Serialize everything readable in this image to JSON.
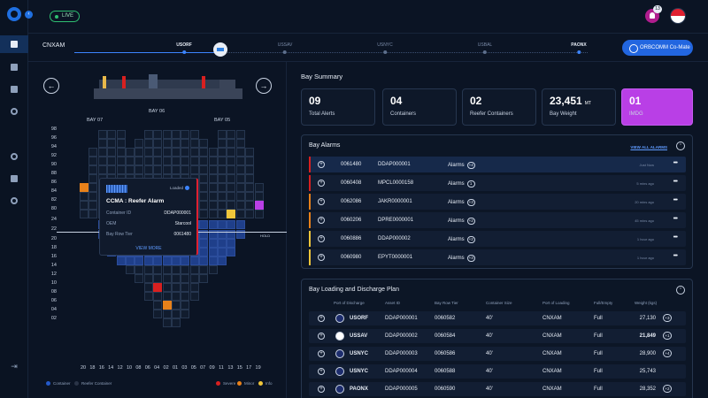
{
  "topbar": {
    "live_label": "LIVE",
    "notification_count": "13"
  },
  "route": {
    "origin": "CNXAM",
    "stops": [
      {
        "code": "USORF",
        "active": true
      },
      {
        "code": "USSAV",
        "active": false
      },
      {
        "code": "USNYC",
        "active": false
      },
      {
        "code": "USBAL",
        "active": false
      },
      {
        "code": "PAONX",
        "active": true
      }
    ],
    "comate_label": "ORBCOMM Co-Mate"
  },
  "bay_view": {
    "bay_labels": {
      "center": "BAY 06",
      "left": "BAY 07",
      "right": "BAY 05"
    },
    "row_labels": [
      "98",
      "96",
      "94",
      "92",
      "90",
      "88",
      "86",
      "84",
      "82",
      "80",
      "24",
      "22",
      "20",
      "18",
      "16",
      "14",
      "12",
      "10",
      "08",
      "06",
      "04",
      "02"
    ],
    "column_labels": [
      "20",
      "18",
      "16",
      "14",
      "12",
      "10",
      "08",
      "06",
      "04",
      "02",
      "01",
      "03",
      "05",
      "07",
      "09",
      "11",
      "13",
      "15",
      "17",
      "19"
    ],
    "hold_label": "HOLD",
    "legend": [
      {
        "label": "Container",
        "color": "#2459c9"
      },
      {
        "label": "Reefer Container",
        "color": "#2a3447"
      },
      {
        "label": "Severe",
        "color": "#d82020"
      },
      {
        "label": "Minor",
        "color": "#e8811a"
      },
      {
        "label": "Info",
        "color": "#f0c63a"
      }
    ],
    "popup": {
      "status": "Loaded",
      "title": "CCMA : Reefer Alarm",
      "fields": [
        {
          "key": "Container ID",
          "value": "DDAP000001"
        },
        {
          "key": "OEM",
          "value": "Starcool"
        },
        {
          "key": "Bay Row Tier",
          "value": "0061480"
        }
      ],
      "view_more": "VIEW MORE"
    }
  },
  "bay_summary": {
    "title": "Bay Summary",
    "stats": [
      {
        "value": "09",
        "unit": "",
        "label": "Total Alerts"
      },
      {
        "value": "04",
        "unit": "",
        "label": "Containers"
      },
      {
        "value": "02",
        "unit": "",
        "label": "Reefer Containers"
      },
      {
        "value": "23,451",
        "unit": "MT",
        "label": "Bay Weight"
      },
      {
        "value": "01",
        "unit": "",
        "label": "IMDG"
      }
    ]
  },
  "bay_alarms": {
    "title": "Bay Alarms",
    "view_all": "VIEW ALL ALARMS",
    "rows": [
      {
        "bay_row_tier": "0061480",
        "container_id": "DDAP000001",
        "label": "Alarms",
        "count": "+4",
        "time": "Just Now",
        "severity": "#d82020"
      },
      {
        "bay_row_tier": "0060408",
        "container_id": "MPCL0000158",
        "label": "Alarms",
        "count": "1",
        "time": "5 mins ago",
        "severity": "#d82020"
      },
      {
        "bay_row_tier": "0062086",
        "container_id": "JAKR0000001",
        "label": "Alarms",
        "count": "+3",
        "time": "20 mins ago",
        "severity": "#e8811a"
      },
      {
        "bay_row_tier": "0060206",
        "container_id": "DPRE0000001",
        "label": "Alarms",
        "count": "+2",
        "time": "45 mins ago",
        "severity": "#e8811a"
      },
      {
        "bay_row_tier": "0060886",
        "container_id": "DDAP000002",
        "label": "Alarms",
        "count": "+2",
        "time": "1 hour ago",
        "severity": "#f0c63a"
      },
      {
        "bay_row_tier": "0060980",
        "container_id": "EPYT0000001",
        "label": "Alarms",
        "count": "+3",
        "time": "1 hour ago",
        "severity": "#f0c63a"
      }
    ]
  },
  "loading_plan": {
    "title": "Bay Loading and Discharge Plan",
    "columns": [
      "Port of Discharge",
      "Asset ID",
      "Bay Row Tier",
      "Container Size",
      "Port of Loading",
      "Full/Empty",
      "Weight (kgs)"
    ],
    "rows": [
      {
        "port": "USORF",
        "asset": "DDAP000001",
        "brt": "0060582",
        "size": "40'",
        "pol": "CNXAM",
        "fe": "Full",
        "weight": "27,130",
        "bold": false,
        "pill": "+3"
      },
      {
        "port": "USSAV",
        "asset": "DDAP000002",
        "brt": "0060584",
        "size": "40'",
        "pol": "CNXAM",
        "fe": "Full",
        "weight": "21,849",
        "bold": true,
        "pill": "+1"
      },
      {
        "port": "USNYC",
        "asset": "DDAP000003",
        "brt": "0060586",
        "size": "40'",
        "pol": "CNXAM",
        "fe": "Full",
        "weight": "28,900",
        "bold": false,
        "pill": "+4"
      },
      {
        "port": "USNYC",
        "asset": "DDAP000004",
        "brt": "0060588",
        "size": "40'",
        "pol": "CNXAM",
        "fe": "Full",
        "weight": "25,743",
        "bold": false,
        "pill": ""
      },
      {
        "port": "PAONX",
        "asset": "DDAP000005",
        "brt": "0060590",
        "size": "40'",
        "pol": "CNXAM",
        "fe": "Full",
        "weight": "28,352",
        "bold": false,
        "pill": "+2"
      }
    ]
  }
}
